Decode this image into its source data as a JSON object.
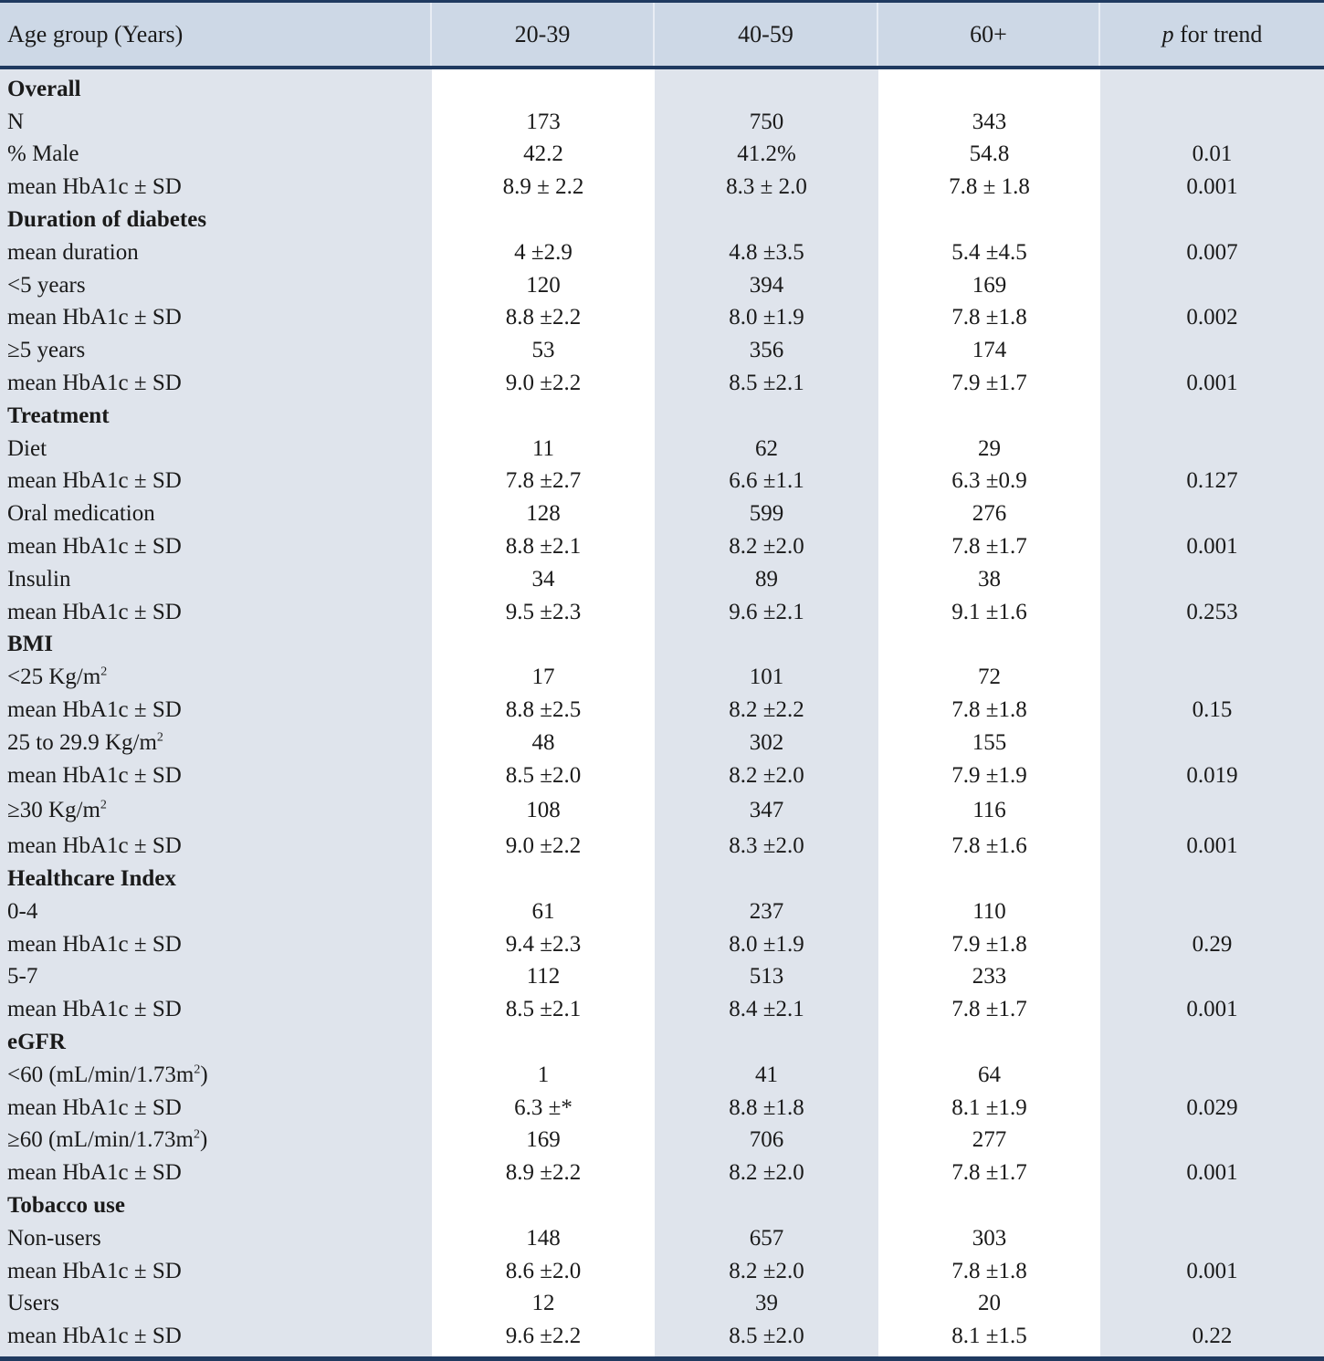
{
  "colors": {
    "header_bg": "#cdd8e6",
    "shaded_col": "#dfe4ec",
    "rule": "#1f3a60"
  },
  "header": {
    "label": "Age group (Years)",
    "cols": [
      "20-39",
      "40-59",
      "60+"
    ],
    "p_italic": "p",
    "p_rest": " for trend"
  },
  "rows": [
    {
      "label": "Overall",
      "section": true
    },
    {
      "label": "N",
      "v": [
        "173",
        "750",
        "343",
        ""
      ]
    },
    {
      "label": "% Male",
      "v": [
        "42.2",
        "41.2%",
        "54.8",
        "0.01"
      ]
    },
    {
      "label": "mean HbA1c ± SD",
      "v": [
        "8.9 ± 2.2",
        "8.3 ± 2.0",
        "7.8 ± 1.8",
        "0.001"
      ]
    },
    {
      "label": "Duration of diabetes",
      "section": true
    },
    {
      "label": "mean duration",
      "v": [
        "4 ±2.9",
        "4.8 ±3.5",
        "5.4 ±4.5",
        "0.007"
      ]
    },
    {
      "label": "<5 years",
      "v": [
        "120",
        "394",
        "169",
        ""
      ]
    },
    {
      "label": "mean HbA1c ± SD",
      "v": [
        "8.8 ±2.2",
        "8.0 ±1.9",
        "7.8 ±1.8",
        "0.002"
      ]
    },
    {
      "label": "≥5 years",
      "v": [
        "53",
        "356",
        "174",
        ""
      ]
    },
    {
      "label": "mean HbA1c ± SD",
      "v": [
        "9.0 ±2.2",
        "8.5 ±2.1",
        "7.9 ±1.7",
        "0.001"
      ]
    },
    {
      "label": "Treatment",
      "section": true
    },
    {
      "label": "Diet",
      "v": [
        "11",
        "62",
        "29",
        ""
      ]
    },
    {
      "label": "mean HbA1c ± SD",
      "v": [
        "7.8 ±2.7",
        "6.6 ±1.1",
        "6.3 ±0.9",
        "0.127"
      ]
    },
    {
      "label": "Oral medication",
      "v": [
        "128",
        "599",
        "276",
        ""
      ]
    },
    {
      "label": "mean HbA1c ± SD",
      "v": [
        "8.8 ±2.1",
        "8.2 ±2.0",
        "7.8 ±1.7",
        "0.001"
      ]
    },
    {
      "label": "Insulin",
      "v": [
        "34",
        "89",
        "38",
        ""
      ]
    },
    {
      "label": "mean HbA1c ± SD",
      "v": [
        "9.5 ±2.3",
        "9.6 ±2.1",
        "9.1 ±1.6",
        "0.253"
      ]
    },
    {
      "label": "BMI",
      "section": true
    },
    {
      "label": "<25 Kg/m",
      "sup": "2",
      "v": [
        "17",
        "101",
        "72",
        ""
      ]
    },
    {
      "label": "mean HbA1c ± SD",
      "v": [
        "8.8 ±2.5",
        "8.2 ±2.2",
        "7.8 ±1.8",
        "0.15"
      ]
    },
    {
      "label": "25 to 29.9 Kg/m",
      "sup": "2",
      "v": [
        "48",
        "302",
        "155",
        ""
      ]
    },
    {
      "label": "mean HbA1c ± SD",
      "v": [
        "8.5 ±2.0",
        "8.2 ±2.0",
        "7.9 ±1.9",
        "0.019"
      ]
    },
    {
      "label": "≥30 Kg/m",
      "sup": "2",
      "tall": true,
      "v": [
        "108",
        "347",
        "116",
        ""
      ]
    },
    {
      "label": "mean HbA1c ± SD",
      "v": [
        "9.0 ±2.2",
        "8.3 ±2.0",
        "7.8 ±1.6",
        "0.001"
      ]
    },
    {
      "label": "Healthcare Index",
      "section": true
    },
    {
      "label": "0-4",
      "v": [
        "61",
        "237",
        "110",
        ""
      ]
    },
    {
      "label": "mean HbA1c ± SD",
      "v": [
        "9.4 ±2.3",
        "8.0 ±1.9",
        "7.9 ±1.8",
        "0.29"
      ]
    },
    {
      "label": "5-7",
      "v": [
        "112",
        "513",
        "233",
        ""
      ]
    },
    {
      "label": "mean HbA1c ± SD",
      "v": [
        "8.5 ±2.1",
        "8.4 ±2.1",
        "7.8 ±1.7",
        "0.001"
      ]
    },
    {
      "label": "eGFR",
      "section": true
    },
    {
      "label": "<60 (mL/min/1.73m",
      "sup": "2",
      "tail": ")",
      "v": [
        "1",
        "41",
        "64",
        ""
      ]
    },
    {
      "label": "mean HbA1c ± SD",
      "v": [
        "6.3 ±*",
        "8.8 ±1.8",
        "8.1 ±1.9",
        "0.029"
      ]
    },
    {
      "label": "≥60 (mL/min/1.73m",
      "sup": "2",
      "tail": ")",
      "v": [
        "169",
        "706",
        "277",
        ""
      ]
    },
    {
      "label": "mean HbA1c ± SD",
      "v": [
        "8.9 ±2.2",
        "8.2 ±2.0",
        "7.8 ±1.7",
        "0.001"
      ]
    },
    {
      "label": "Tobacco use",
      "section": true
    },
    {
      "label": "Non-users",
      "v": [
        "148",
        "657",
        "303",
        ""
      ]
    },
    {
      "label": "mean HbA1c ± SD",
      "v": [
        "8.6 ±2.0",
        "8.2 ±2.0",
        "7.8 ±1.8",
        "0.001"
      ]
    },
    {
      "label": "Users",
      "v": [
        "12",
        "39",
        "20",
        ""
      ]
    },
    {
      "label": "mean HbA1c ± SD",
      "v": [
        "9.6 ±2.2",
        "8.5 ±2.0",
        "8.1 ±1.5",
        "0.22"
      ]
    }
  ]
}
